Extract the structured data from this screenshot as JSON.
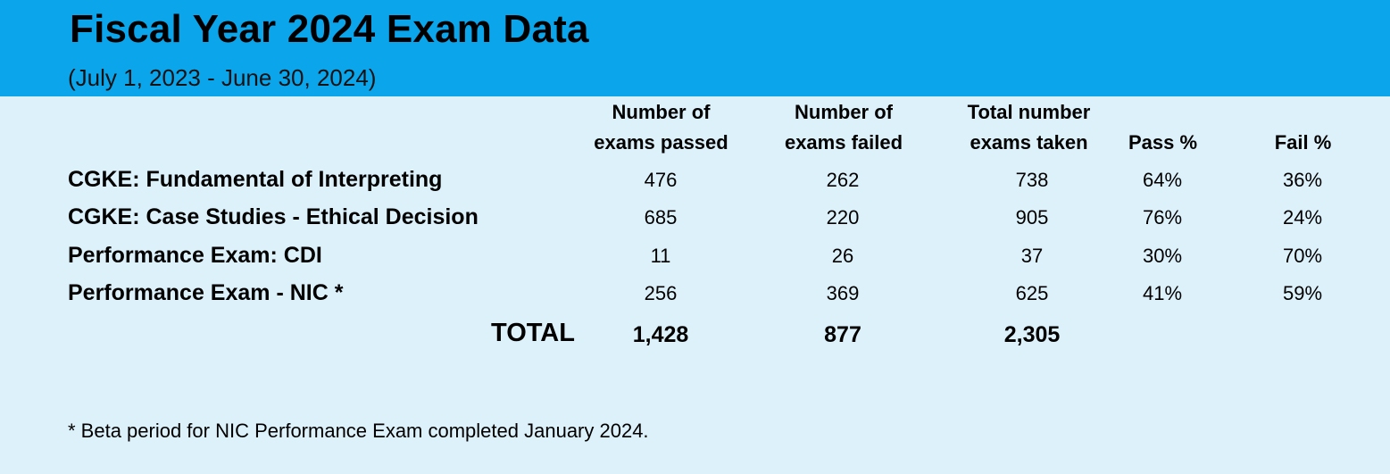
{
  "header": {
    "title": "Fiscal Year 2024 Exam Data",
    "subtitle": "(July 1, 2023 - June 30, 2024)"
  },
  "table": {
    "columns": [
      {
        "line1": "Number of",
        "line2": "exams passed"
      },
      {
        "line1": "Number of",
        "line2": "exams failed"
      },
      {
        "line1": "Total number",
        "line2": "exams taken"
      },
      {
        "line1": "",
        "line2": "Pass %"
      },
      {
        "line1": "",
        "line2": "Fail %"
      }
    ],
    "rows": [
      {
        "label": "CGKE: Fundamental of Interpreting",
        "values": [
          "476",
          "262",
          "738",
          "64%",
          "36%"
        ]
      },
      {
        "label": "CGKE: Case Studies - Ethical Decision",
        "values": [
          "685",
          "220",
          "905",
          "76%",
          "24%"
        ]
      },
      {
        "label": "Performance Exam: CDI",
        "values": [
          "11",
          "26",
          "37",
          "30%",
          "70%"
        ]
      },
      {
        "label": "Performance Exam - NIC *",
        "values": [
          "256",
          "369",
          "625",
          "41%",
          "59%"
        ]
      }
    ],
    "total": {
      "label": "TOTAL",
      "values": [
        "1,428",
        "877",
        "2,305"
      ]
    }
  },
  "footnote": "* Beta period for NIC Performance Exam completed January 2024.",
  "colors": {
    "banner": "#0ba5ec",
    "background": "#ddf1fb"
  }
}
